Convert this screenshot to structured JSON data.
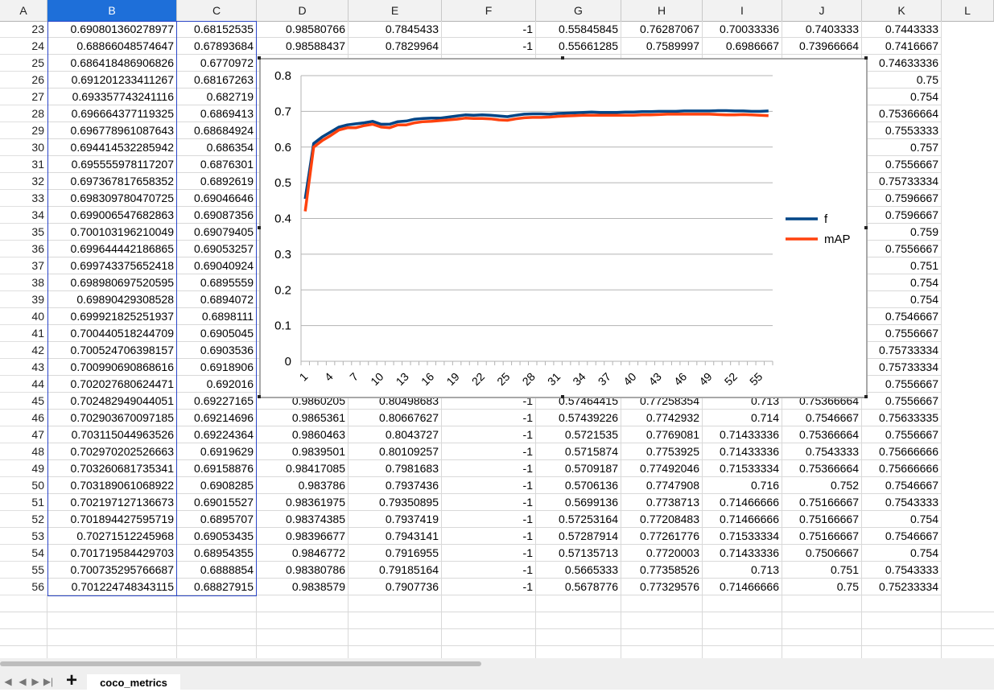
{
  "columns": [
    "A",
    "B",
    "C",
    "D",
    "E",
    "F",
    "G",
    "H",
    "I",
    "J",
    "K",
    "L"
  ],
  "selected_column": "B",
  "rows": [
    {
      "n": "23",
      "c": [
        "0.690801360278977",
        "0.68152535",
        "0.98580766",
        "0.7845433",
        "-1",
        "0.55845845",
        "0.76287067",
        "0.70033336",
        "0.7403333",
        "0.7443333"
      ]
    },
    {
      "n": "24",
      "c": [
        "0.6886604857464​7",
        "0.67893684",
        "0.98588437",
        "0.7829964",
        "-1",
        "0.55661285",
        "0.7589997",
        "0.6986667",
        "0.73966664",
        "0.7416667"
      ]
    },
    {
      "n": "25",
      "c": [
        "0.686418486906826",
        "0.6770972",
        "",
        "",
        "",
        "",
        "",
        "",
        "",
        "0.74633336"
      ]
    },
    {
      "n": "26",
      "c": [
        "0.691201233411267",
        "0.68167263",
        "",
        "",
        "",
        "",
        "",
        "",
        "",
        "0.75"
      ]
    },
    {
      "n": "27",
      "c": [
        "0.693357743241116",
        "0.682719",
        "",
        "",
        "",
        "",
        "",
        "",
        "",
        "0.754"
      ]
    },
    {
      "n": "28",
      "c": [
        "0.696664377119325",
        "0.6869413",
        "",
        "",
        "",
        "",
        "",
        "",
        "",
        "0.75366664"
      ]
    },
    {
      "n": "29",
      "c": [
        "0.696778961087643",
        "0.68684924",
        "",
        "",
        "",
        "",
        "",
        "",
        "",
        "0.7553333"
      ]
    },
    {
      "n": "30",
      "c": [
        "0.694414532285942",
        "0.686354",
        "",
        "",
        "",
        "",
        "",
        "",
        "",
        "0.757"
      ]
    },
    {
      "n": "31",
      "c": [
        "0.695555978117207",
        "0.6876301",
        "",
        "",
        "",
        "",
        "",
        "",
        "",
        "0.7556667"
      ]
    },
    {
      "n": "32",
      "c": [
        "0.697367817658352",
        "0.6892619",
        "",
        "",
        "",
        "",
        "",
        "",
        "",
        "0.75733334"
      ]
    },
    {
      "n": "33",
      "c": [
        "0.698309780470725",
        "0.69046646",
        "",
        "",
        "",
        "",
        "",
        "",
        "",
        "0.7596667"
      ]
    },
    {
      "n": "34",
      "c": [
        "0.699006547682863",
        "0.69087356",
        "",
        "",
        "",
        "",
        "",
        "",
        "",
        "0.7596667"
      ]
    },
    {
      "n": "35",
      "c": [
        "0.700103196210049",
        "0.69079405",
        "",
        "",
        "",
        "",
        "",
        "",
        "",
        "0.759"
      ]
    },
    {
      "n": "36",
      "c": [
        "0.699644442186865",
        "0.69053257",
        "",
        "",
        "",
        "",
        "",
        "",
        "",
        "0.7556667"
      ]
    },
    {
      "n": "37",
      "c": [
        "0.699743375652418",
        "0.69040924",
        "",
        "",
        "",
        "",
        "",
        "",
        "",
        "0.751"
      ]
    },
    {
      "n": "38",
      "c": [
        "0.698980697520595",
        "0.6895559",
        "",
        "",
        "",
        "",
        "",
        "",
        "",
        "0.754"
      ]
    },
    {
      "n": "39",
      "c": [
        "0.69890429308528",
        "0.6894072",
        "",
        "",
        "",
        "",
        "",
        "",
        "",
        "0.754"
      ]
    },
    {
      "n": "40",
      "c": [
        "0.699921825251937",
        "0.6898111",
        "",
        "",
        "",
        "",
        "",
        "",
        "",
        "0.7546667"
      ]
    },
    {
      "n": "41",
      "c": [
        "0.700440518244709",
        "0.6905045",
        "",
        "",
        "",
        "",
        "",
        "",
        "",
        "0.7556667"
      ]
    },
    {
      "n": "42",
      "c": [
        "0.700524706398157",
        "0.6903536",
        "",
        "",
        "",
        "",
        "",
        "",
        "",
        "0.75733334"
      ]
    },
    {
      "n": "43",
      "c": [
        "0.700990690868616",
        "0.6918906",
        "",
        "",
        "",
        "",
        "",
        "",
        "",
        "0.75733334"
      ]
    },
    {
      "n": "44",
      "c": [
        "0.702027680624471",
        "0.692016",
        "",
        "",
        "",
        "",
        "",
        "",
        "",
        "0.7556667"
      ]
    },
    {
      "n": "45",
      "c": [
        "0.702482949044051",
        "0.69227165",
        "0.9860205",
        "0.80498683",
        "-1",
        "0.57464415",
        "0.77258354",
        "0.713",
        "0.75366664",
        "0.7556667"
      ]
    },
    {
      "n": "46",
      "c": [
        "0.702903670097185",
        "0.69214696",
        "0.9865361",
        "0.80667627",
        "-1",
        "0.57439226",
        "0.7742932",
        "0.714",
        "0.7546667",
        "0.75633335"
      ]
    },
    {
      "n": "47",
      "c": [
        "0.703115044963526",
        "0.69224364",
        "0.9860463",
        "0.8043727",
        "-1",
        "0.5721535",
        "0.7769081",
        "0.71433336",
        "0.75366664",
        "0.7556667"
      ]
    },
    {
      "n": "48",
      "c": [
        "0.702970202526663",
        "0.6919629",
        "0.9839501",
        "0.80109257",
        "-1",
        "0.5715874",
        "0.7753925",
        "0.71433336",
        "0.7543333",
        "0.75666666"
      ]
    },
    {
      "n": "49",
      "c": [
        "0.703260681735341",
        "0.69158876",
        "0.98417085",
        "0.7981683",
        "-1",
        "0.5709187",
        "0.77492046",
        "0.71533334",
        "0.75366664",
        "0.75666666"
      ]
    },
    {
      "n": "50",
      "c": [
        "0.703189061068922",
        "0.6908285",
        "0.983786",
        "0.7937436",
        "-1",
        "0.5706136",
        "0.7747908",
        "0.716",
        "0.752",
        "0.7546667"
      ]
    },
    {
      "n": "51",
      "c": [
        "0.702197127136673",
        "0.69015527",
        "0.98361975",
        "0.79350895",
        "-1",
        "0.5699136",
        "0.7738713",
        "0.71466666",
        "0.75166667",
        "0.7543333"
      ]
    },
    {
      "n": "52",
      "c": [
        "0.701894427595719",
        "0.6895707",
        "0.98374385",
        "0.7937419",
        "-1",
        "0.57253164",
        "0.77208483",
        "0.71466666",
        "0.75166667",
        "0.754"
      ]
    },
    {
      "n": "53",
      "c": [
        "0.70271512245968",
        "0.69053435",
        "0.98396677",
        "0.7943141",
        "-1",
        "0.57287914",
        "0.77261776",
        "0.71533334",
        "0.75166667",
        "0.7546667"
      ]
    },
    {
      "n": "54",
      "c": [
        "0.701719584429703",
        "0.68954355",
        "0.9846772",
        "0.7916955",
        "-1",
        "0.57135713",
        "0.7720003",
        "0.71433336",
        "0.7506667",
        "0.754"
      ]
    },
    {
      "n": "55",
      "c": [
        "0.700735295766687",
        "0.6888854",
        "0.98380786",
        "0.79185164",
        "-1",
        "0.5665333",
        "0.77358526",
        "0.713",
        "0.751",
        "0.7543333"
      ]
    },
    {
      "n": "56",
      "c": [
        "0.701224748343115",
        "0.68827915",
        "0.9838579",
        "0.7907736",
        "-1",
        "0.5678776",
        "0.77329576",
        "0.71466666",
        "0.75",
        "0.75233334"
      ]
    }
  ],
  "chart_data": {
    "type": "line",
    "title": "",
    "xlabel": "",
    "ylabel": "",
    "x_tick_labels": [
      "1",
      "4",
      "7",
      "10",
      "13",
      "16",
      "19",
      "22",
      "25",
      "28",
      "31",
      "34",
      "37",
      "40",
      "43",
      "46",
      "49",
      "52",
      "55"
    ],
    "y_tick_labels": [
      "0",
      "0.1",
      "0.2",
      "0.3",
      "0.4",
      "0.5",
      "0.6",
      "0.7",
      "0.8"
    ],
    "ylim": [
      0,
      0.8
    ],
    "x_count": 56,
    "grid": "horizontal",
    "legend": "right",
    "series": [
      {
        "name": "f",
        "color": "#004586",
        "values": [
          0.455,
          0.61,
          0.628,
          0.642,
          0.656,
          0.662,
          0.665,
          0.668,
          0.672,
          0.664,
          0.664,
          0.671,
          0.673,
          0.678,
          0.68,
          0.681,
          0.681,
          0.684,
          0.687,
          0.69,
          0.689,
          0.69,
          0.689,
          0.687,
          0.685,
          0.689,
          0.692,
          0.693,
          0.693,
          0.692,
          0.694,
          0.695,
          0.696,
          0.697,
          0.698,
          0.697,
          0.697,
          0.697,
          0.698,
          0.698,
          0.699,
          0.699,
          0.7,
          0.7,
          0.7,
          0.701,
          0.701,
          0.701,
          0.701,
          0.702,
          0.702,
          0.701,
          0.701,
          0.7,
          0.7,
          0.701
        ]
      },
      {
        "name": "mAP",
        "color": "#ff420e",
        "values": [
          0.42,
          0.6,
          0.618,
          0.632,
          0.648,
          0.654,
          0.654,
          0.66,
          0.664,
          0.656,
          0.654,
          0.662,
          0.662,
          0.668,
          0.671,
          0.672,
          0.674,
          0.676,
          0.678,
          0.681,
          0.68,
          0.68,
          0.679,
          0.676,
          0.675,
          0.679,
          0.682,
          0.683,
          0.683,
          0.684,
          0.686,
          0.687,
          0.688,
          0.689,
          0.689,
          0.689,
          0.689,
          0.689,
          0.689,
          0.689,
          0.69,
          0.69,
          0.691,
          0.692,
          0.692,
          0.692,
          0.692,
          0.692,
          0.692,
          0.691,
          0.69,
          0.69,
          0.691,
          0.69,
          0.689,
          0.688
        ]
      }
    ]
  },
  "sheet_tab": "coco_metrics",
  "nav_icons": [
    "first-sheet-icon",
    "prev-sheet-icon",
    "next-sheet-icon",
    "last-sheet-icon"
  ],
  "add_sheet_icon": "plus-icon"
}
